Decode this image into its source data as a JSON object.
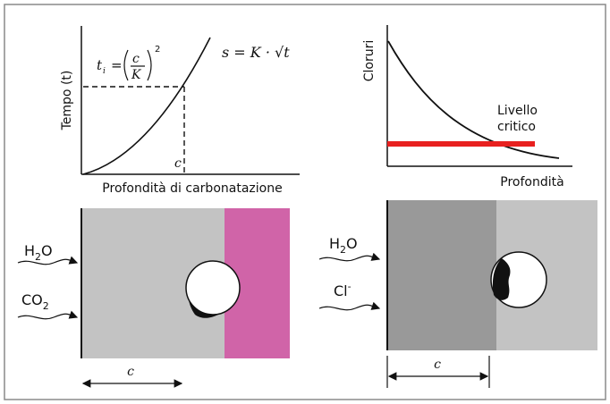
{
  "carbonation_chart": {
    "ylabel": "Tempo (t)",
    "xlabel": "Profondità di carbonatazione",
    "formula_left": "t",
    "formula_sub": "i",
    "formula_eq": "=",
    "formula_frac_num": "c",
    "formula_frac_den": "K",
    "formula_exp": "2",
    "formula_right": "s = K · √t",
    "c_tick": "c"
  },
  "chloride_chart": {
    "ylabel": "Cloruri",
    "xlabel": "Profondità",
    "threshold_label_1": "Livello",
    "threshold_label_2": "critico"
  },
  "left_block": {
    "agent_1": "H",
    "agent_1_sub": "2",
    "agent_1_tail": "O",
    "agent_2": "CO",
    "agent_2_sub": "2",
    "depth_label": "c"
  },
  "right_block": {
    "agent_1": "H",
    "agent_1_sub": "2",
    "agent_1_tail": "O",
    "agent_2": "Cl",
    "agent_2_sup": "-",
    "depth_label": "c"
  },
  "colors": {
    "concrete_light": "#c3c3c3",
    "concrete_dark": "#999999",
    "phenolphthalein": "#d064a8",
    "threshold": "#e8201f",
    "frame": "#8a8a8a"
  }
}
